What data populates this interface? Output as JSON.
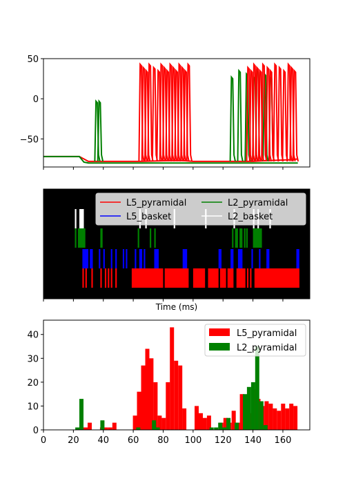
{
  "chart_data": [
    {
      "type": "line",
      "panel": "voltage traces",
      "ylim": [
        -85,
        50
      ],
      "xlim": [
        0,
        178
      ],
      "yticks": [
        -50,
        0,
        50
      ],
      "grid": false,
      "series": [
        {
          "color": "#ff0000",
          "group": "L5_pyramidal",
          "x": [
            0,
            24,
            27,
            30,
            40,
            60,
            65,
            85,
            93,
            100,
            125,
            140,
            150,
            165,
            170
          ],
          "y": [
            -72,
            -72,
            -75,
            -78,
            -78,
            -78,
            -78,
            -77,
            -77,
            -78,
            -78,
            -78,
            -77,
            -76,
            -75
          ]
        },
        {
          "color": "#008000",
          "group": "L2_pyramidal",
          "x": [
            0,
            24,
            27,
            30,
            40,
            60,
            90,
            110,
            125,
            140,
            150,
            165,
            170
          ],
          "y": [
            -72,
            -72,
            -79,
            -80,
            -80,
            -80,
            -80,
            -80,
            -80,
            -80,
            -80,
            -80,
            -80
          ]
        }
      ],
      "spikes": [
        {
          "color": "#008000",
          "x": [
            35.5,
            37.5,
            126,
            131,
            136,
            141,
            143,
            148,
            152
          ]
        },
        {
          "color": "#ff0000",
          "x": [
            65,
            67,
            69,
            71,
            74,
            77,
            79,
            81,
            83,
            85,
            87,
            89,
            91,
            93,
            95,
            97,
            137,
            139,
            141,
            143,
            145,
            147,
            150,
            152,
            155,
            158,
            161,
            164,
            166,
            168
          ]
        }
      ]
    },
    {
      "type": "raster",
      "panel": "spike raster",
      "xlabel": "Time (ms)",
      "xlim": [
        0,
        178
      ],
      "legend_position": "top-right",
      "legend": [
        {
          "label": "L5_pyramidal",
          "color": "#ff0000"
        },
        {
          "label": "L5_basket",
          "color": "#0000ff"
        },
        {
          "label": "L2_pyramidal",
          "color": "#008000"
        },
        {
          "label": "L2_basket",
          "color": "#ffffff"
        }
      ],
      "rows": [
        {
          "group": "L2_basket",
          "color": "#ffffff",
          "spans": [
            [
              21,
              22
            ],
            [
              24,
              27
            ],
            [
              64,
              65
            ],
            [
              68,
              69
            ],
            [
              87,
              88
            ],
            [
              108,
              109
            ],
            [
              127,
              128
            ],
            [
              140,
              141
            ],
            [
              143,
              144
            ],
            [
              151,
              152
            ]
          ]
        },
        {
          "group": "L2_pyramidal",
          "color": "#008000",
          "spans": [
            [
              21,
              22
            ],
            [
              23,
              28
            ],
            [
              38,
              39.5
            ],
            [
              63,
              64
            ],
            [
              71,
              72
            ],
            [
              74,
              75
            ],
            [
              126,
              127
            ],
            [
              128,
              130
            ],
            [
              131,
              133
            ],
            [
              134,
              135
            ],
            [
              135.5,
              136.5
            ],
            [
              140,
              146
            ]
          ]
        },
        {
          "group": "L5_basket",
          "color": "#0000ff",
          "spans": [
            [
              26,
              30
            ],
            [
              31,
              33
            ],
            [
              37,
              38
            ],
            [
              40,
              41
            ],
            [
              45,
              46
            ],
            [
              48,
              49
            ],
            [
              53,
              54
            ],
            [
              55,
              56
            ],
            [
              61,
              62
            ],
            [
              64,
              66
            ],
            [
              67,
              68
            ],
            [
              74,
              77
            ],
            [
              93,
              96
            ],
            [
              117,
              119
            ],
            [
              125,
              127
            ],
            [
              130,
              133
            ],
            [
              139,
              140
            ],
            [
              144,
              145
            ],
            [
              149,
              151
            ],
            [
              169,
              171
            ]
          ]
        },
        {
          "group": "L5_pyramidal",
          "color": "#ff0000",
          "spans": [
            [
              26,
              27
            ],
            [
              28,
              29
            ],
            [
              32,
              33
            ],
            [
              38,
              39
            ],
            [
              41,
              42
            ],
            [
              43,
              44
            ],
            [
              45,
              46
            ],
            [
              48,
              49
            ],
            [
              59,
              80
            ],
            [
              81,
              97
            ],
            [
              100,
              108
            ],
            [
              110,
              117
            ],
            [
              118,
              122
            ],
            [
              123,
              127
            ],
            [
              129,
              135
            ],
            [
              136,
              137
            ],
            [
              138,
              139
            ],
            [
              141,
              171
            ]
          ]
        }
      ]
    },
    {
      "type": "bar",
      "panel": "spike histogram",
      "xlim": [
        0,
        178
      ],
      "ylim": [
        0,
        46
      ],
      "xticks": [
        0,
        20,
        40,
        60,
        80,
        100,
        120,
        140,
        160
      ],
      "yticks": [
        0,
        10,
        20,
        30,
        40
      ],
      "bin_width": 2.75,
      "legend_position": "top-right",
      "series": [
        {
          "name": "L5_pyramidal",
          "color": "#ff0000",
          "bins": [
            [
              24.0,
              1
            ],
            [
              26.75,
              1
            ],
            [
              29.5,
              3
            ],
            [
              37.75,
              1
            ],
            [
              40.5,
              1
            ],
            [
              43.25,
              1
            ],
            [
              46.0,
              3
            ],
            [
              59.75,
              6
            ],
            [
              62.5,
              16
            ],
            [
              65.25,
              27
            ],
            [
              68.0,
              34
            ],
            [
              70.75,
              30
            ],
            [
              73.5,
              20
            ],
            [
              76.25,
              6
            ],
            [
              79.0,
              5
            ],
            [
              81.75,
              20
            ],
            [
              84.5,
              43
            ],
            [
              87.25,
              29
            ],
            [
              90.0,
              27
            ],
            [
              92.75,
              9
            ],
            [
              101.0,
              10
            ],
            [
              103.75,
              7
            ],
            [
              106.5,
              5
            ],
            [
              109.25,
              6
            ],
            [
              117.5,
              3
            ],
            [
              120.25,
              5
            ],
            [
              123.0,
              3
            ],
            [
              125.75,
              8
            ],
            [
              128.5,
              3
            ],
            [
              131.25,
              15
            ],
            [
              134.0,
              14
            ],
            [
              136.75,
              7
            ],
            [
              139.5,
              17
            ],
            [
              142.25,
              13
            ],
            [
              145.0,
              10
            ],
            [
              147.75,
              12
            ],
            [
              150.5,
              11
            ],
            [
              153.25,
              9
            ],
            [
              156.0,
              8
            ],
            [
              158.75,
              11
            ],
            [
              161.5,
              9
            ],
            [
              164.25,
              11
            ],
            [
              167.0,
              10
            ]
          ]
        },
        {
          "name": "L2_pyramidal",
          "color": "#008000",
          "bins": [
            [
              21.25,
              1
            ],
            [
              24.0,
              13
            ],
            [
              38.0,
              4
            ],
            [
              62.0,
              1
            ],
            [
              72.5,
              4
            ],
            [
              75.0,
              1
            ],
            [
              111.0,
              1
            ],
            [
              114.0,
              1
            ],
            [
              116.75,
              3
            ],
            [
              119.5,
              1
            ],
            [
              122.25,
              5
            ],
            [
              127.75,
              3
            ],
            [
              133.25,
              15
            ],
            [
              136.0,
              18
            ],
            [
              138.75,
              20
            ],
            [
              141.5,
              35
            ],
            [
              144.25,
              12
            ],
            [
              147.0,
              2
            ]
          ]
        }
      ]
    }
  ]
}
